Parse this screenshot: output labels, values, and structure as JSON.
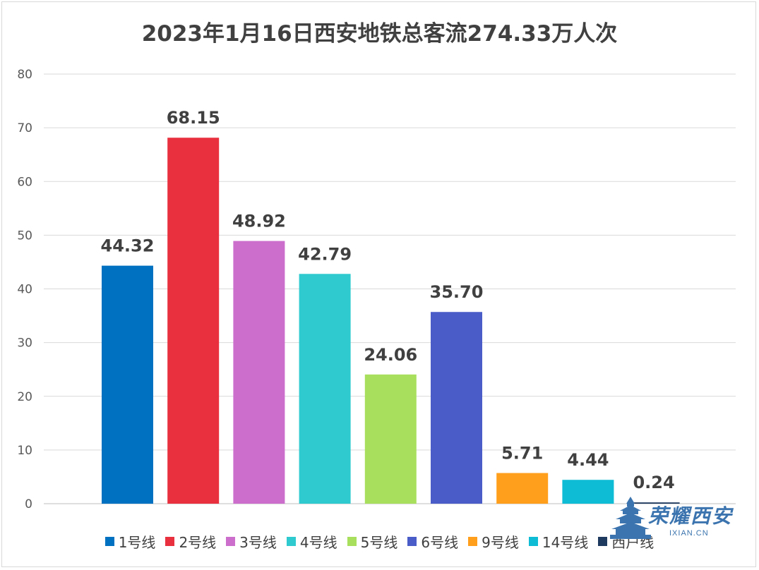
{
  "chart_data": {
    "type": "bar",
    "title": "2023年1月16日西安地铁总客流274.33万人次",
    "categories": [
      "1号线",
      "2号线",
      "3号线",
      "4号线",
      "5号线",
      "6号线",
      "9号线",
      "14号线",
      "西户线"
    ],
    "values": [
      44.32,
      68.15,
      48.92,
      42.79,
      24.06,
      35.7,
      5.71,
      4.44,
      0.24
    ],
    "value_labels": [
      "44.32",
      "68.15",
      "48.92",
      "42.79",
      "24.06",
      "35.70",
      "5.71",
      "4.44",
      "0.24"
    ],
    "colors": [
      "#0070c0",
      "#e8303f",
      "#cc6ecb",
      "#2ecad0",
      "#a8e05e",
      "#4a5cc8",
      "#ff9f1c",
      "#0fbcd6",
      "#1f3a5f"
    ],
    "ylim": [
      0,
      80
    ],
    "yticks": [
      0,
      10,
      20,
      30,
      40,
      50,
      60,
      70,
      80
    ],
    "grid": true,
    "legend_position": "bottom"
  },
  "watermark": {
    "text": "荣耀西安",
    "url": "IXIAN.CN"
  }
}
